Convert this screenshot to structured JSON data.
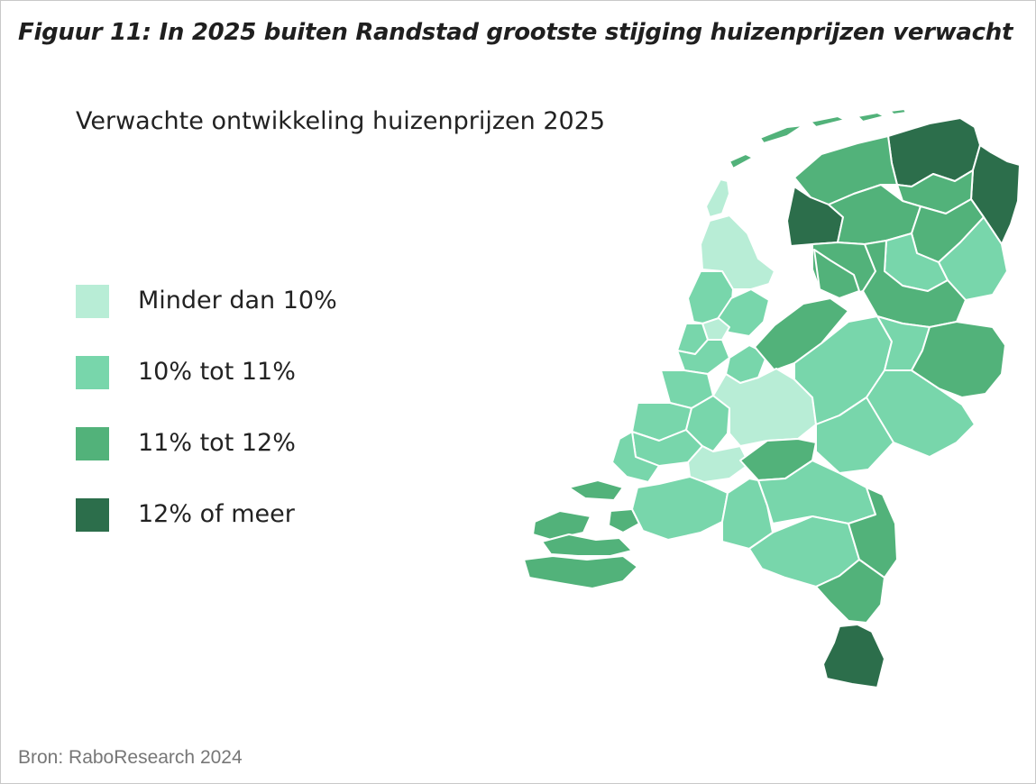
{
  "figure": {
    "title": "Figuur 11: In 2025 buiten Randstad grootste stijging huizenprijzen verwacht"
  },
  "map": {
    "title": "Verwachte ontwikkeling huizenprijzen 2025",
    "legend": [
      {
        "label": "Minder dan 10%",
        "color": "#b8edd6"
      },
      {
        "label": "10% tot 11%",
        "color": "#78d6ab"
      },
      {
        "label": "11% tot 12%",
        "color": "#52b27a"
      },
      {
        "label": "12% of meer",
        "color": "#2c6e4b"
      }
    ]
  },
  "source": {
    "text": "Bron: RaboResearch 2024"
  }
}
